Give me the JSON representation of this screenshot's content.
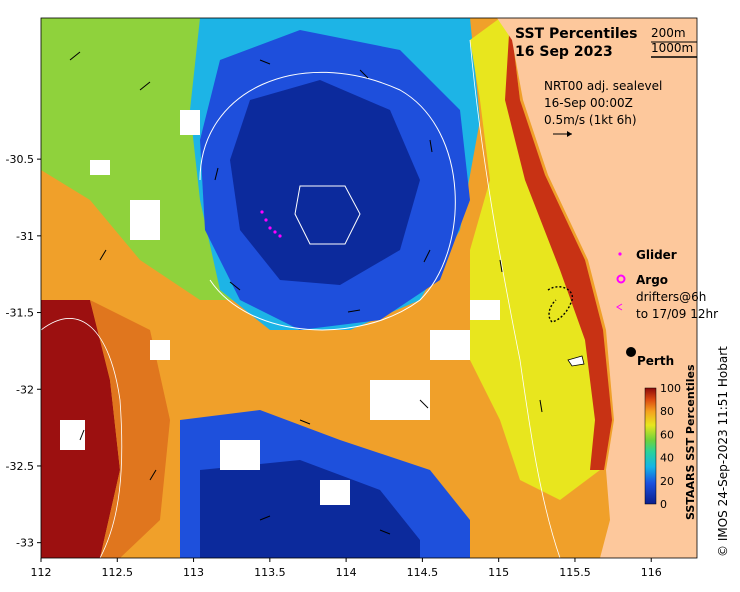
{
  "title": {
    "line1": "SST Percentiles",
    "line2": "16 Sep 2023"
  },
  "contour_legend": {
    "shallow": "200m",
    "deep": "1000m"
  },
  "current_info": {
    "line1": "NRT00 adj. sealevel",
    "line2": "16-Sep 00:00Z",
    "line3": "0.5m/s (1kt 6h)"
  },
  "legend": {
    "glider": "Glider",
    "argo": "Argo",
    "drifters_line1": "drifters@6h",
    "drifters_line2": "to 17/09 12hr"
  },
  "place": {
    "name": "Perth"
  },
  "colorbar": {
    "title": "SSTAARS SST Percentiles",
    "ticks": [
      "100",
      "80",
      "60",
      "40",
      "20",
      "0"
    ]
  },
  "credit": "© IMOS 24-Sep-2023 11:51 Hobart",
  "axes": {
    "x_ticks": [
      "112",
      "112.5",
      "113",
      "113.5",
      "114",
      "114.5",
      "115",
      "115.5",
      "116"
    ],
    "y_ticks": [
      "-30.5",
      "-31",
      "-31.5",
      "-32",
      "-32.5",
      "-33"
    ],
    "xlim": [
      112,
      116.3
    ],
    "ylim": [
      -33.1,
      -29.58
    ]
  },
  "colors": {
    "land": "#fdc89c",
    "p_low": "#0a1e8c",
    "p_mid": "#4fd23c",
    "p_high": "#8c0a0a",
    "glider": "#ff00ff",
    "argo": "#ff00ff"
  }
}
